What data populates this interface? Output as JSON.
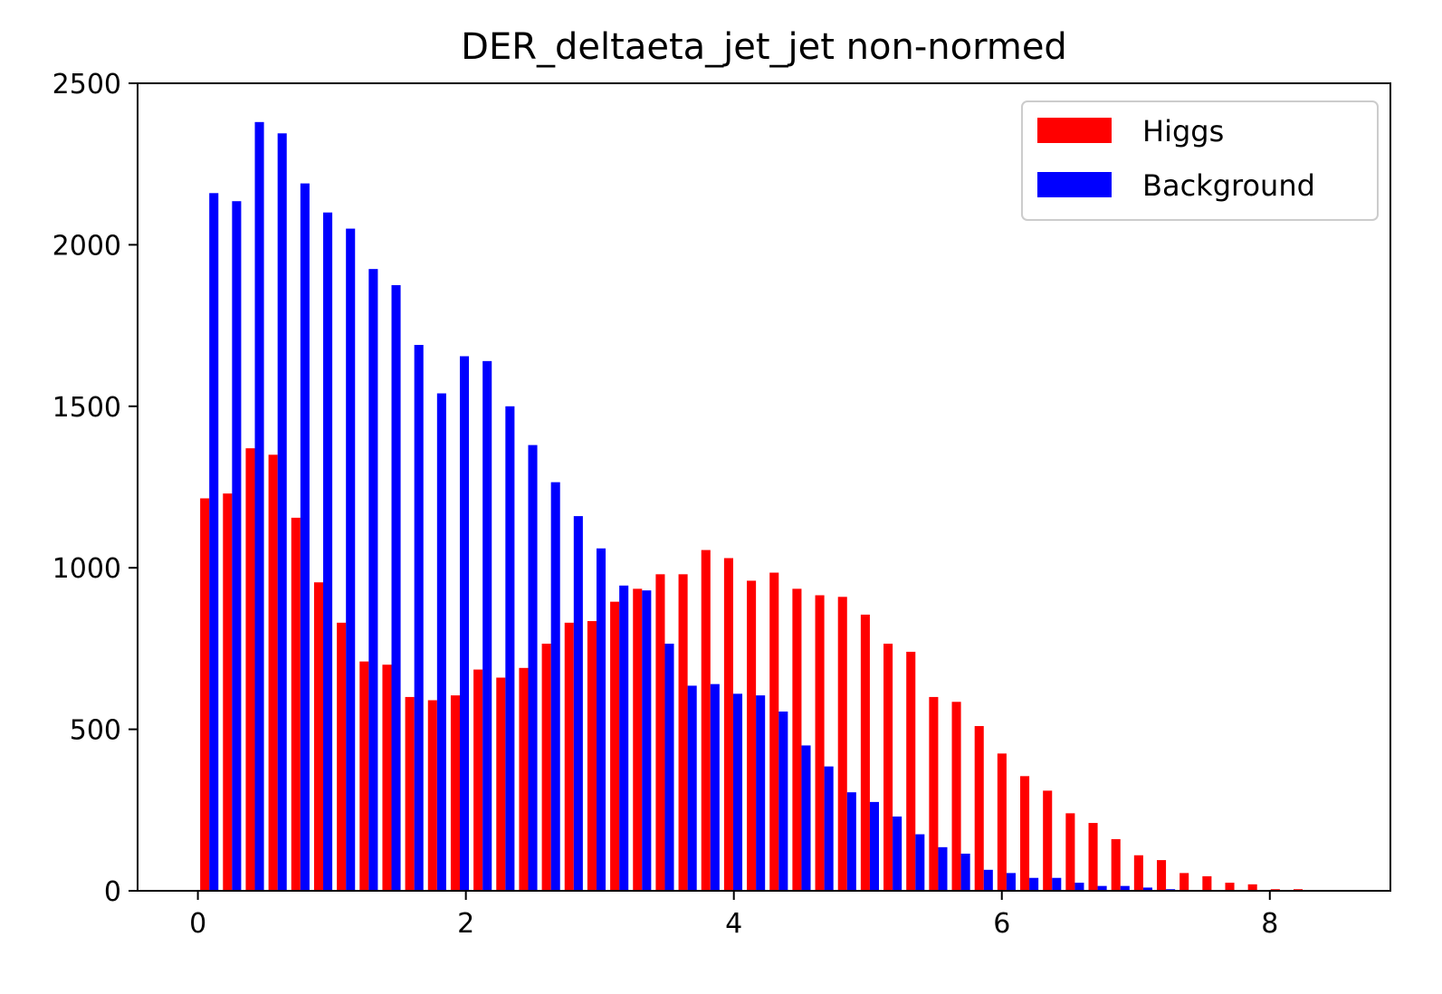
{
  "chart_data": {
    "type": "bar",
    "title": "DER_deltaeta_jet_jet non-normed",
    "xlabel": "",
    "ylabel": "",
    "xlim": [
      -0.45,
      8.9
    ],
    "ylim": [
      0,
      2500
    ],
    "xticks": [
      0,
      2,
      4,
      6,
      8
    ],
    "yticks": [
      0,
      500,
      1000,
      1500,
      2000,
      2500
    ],
    "grid": false,
    "legend_position": "top-right",
    "bin_start": 0.0,
    "bin_width": 0.17,
    "x": [
      0.085,
      0.255,
      0.425,
      0.595,
      0.765,
      0.935,
      1.105,
      1.275,
      1.445,
      1.615,
      1.785,
      1.955,
      2.125,
      2.295,
      2.465,
      2.635,
      2.805,
      2.975,
      3.145,
      3.315,
      3.485,
      3.655,
      3.825,
      3.995,
      4.165,
      4.335,
      4.505,
      4.675,
      4.845,
      5.015,
      5.185,
      5.355,
      5.525,
      5.695,
      5.865,
      6.035,
      6.205,
      6.375,
      6.545,
      6.715,
      6.885,
      7.055,
      7.225,
      7.395,
      7.565,
      7.735,
      7.905,
      8.075,
      8.245
    ],
    "series": [
      {
        "name": "Higgs",
        "color": "#ff0000",
        "values": [
          1215,
          1230,
          1370,
          1350,
          1155,
          955,
          830,
          710,
          700,
          600,
          590,
          605,
          685,
          660,
          690,
          765,
          830,
          835,
          895,
          935,
          980,
          980,
          1055,
          1030,
          960,
          985,
          935,
          915,
          910,
          855,
          765,
          740,
          600,
          585,
          510,
          425,
          355,
          310,
          240,
          210,
          160,
          110,
          95,
          55,
          45,
          25,
          20,
          5,
          5
        ]
      },
      {
        "name": "Background",
        "color": "#0000ff",
        "values": [
          2160,
          2135,
          2380,
          2345,
          2190,
          2100,
          2050,
          1925,
          1875,
          1690,
          1540,
          1655,
          1640,
          1500,
          1380,
          1265,
          1160,
          1060,
          945,
          930,
          765,
          635,
          640,
          610,
          605,
          555,
          450,
          385,
          305,
          275,
          230,
          175,
          135,
          115,
          65,
          55,
          40,
          40,
          25,
          15,
          15,
          10,
          5,
          0,
          0,
          0,
          0,
          0,
          0
        ]
      }
    ]
  }
}
